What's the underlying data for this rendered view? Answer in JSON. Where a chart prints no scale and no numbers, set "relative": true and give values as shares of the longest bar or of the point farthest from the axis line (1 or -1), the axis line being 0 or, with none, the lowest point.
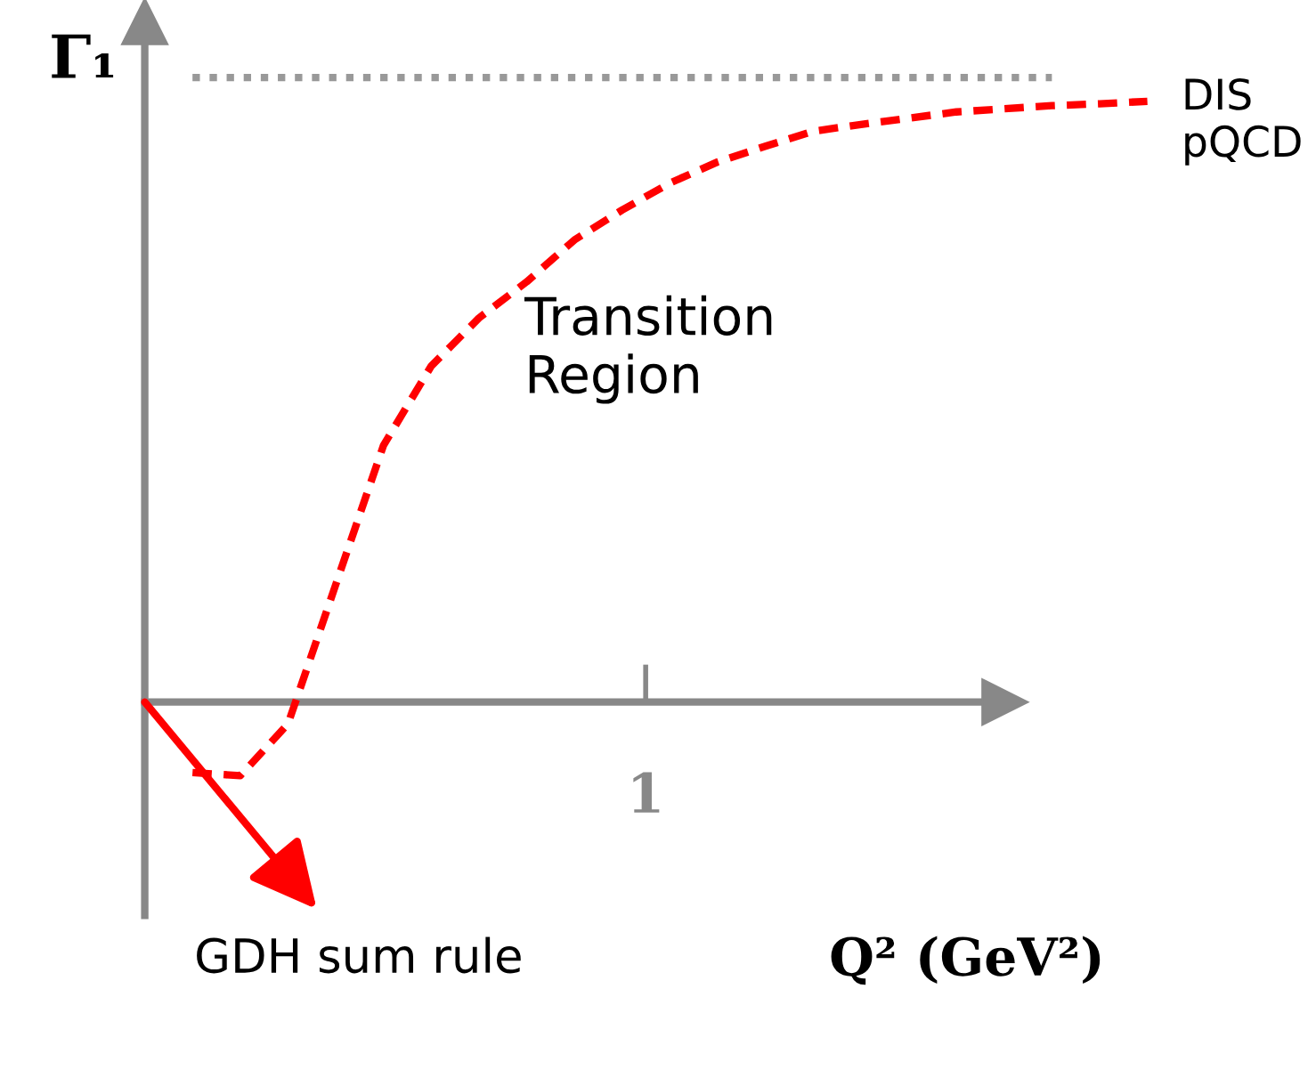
{
  "chart_data": {
    "type": "line",
    "relative": true,
    "xlabel": "Q² (GeV²)",
    "ylabel": "Γ₁",
    "categories": [
      null,
      null,
      null,
      null,
      null,
      null,
      null,
      null,
      null,
      null,
      null,
      null,
      null,
      null,
      null,
      null,
      null,
      null,
      null,
      null,
      null
    ],
    "series": [
      {
        "color": "#999999",
        "line_style": "dotted",
        "values": [
          1,
          1,
          1,
          1,
          1,
          1,
          1,
          1,
          1,
          1,
          1,
          1,
          1,
          1,
          1,
          1,
          1,
          1,
          1,
          null,
          null
        ]
      },
      {
        "color": "#ff0000",
        "line_style": "dashed",
        "values": [
          -0.113,
          -0.118,
          -0.035,
          0.188,
          0.411,
          0.538,
          0.615,
          0.673,
          0.74,
          0.788,
          0.831,
          0.865,
          0.89,
          0.914,
          0.925,
          0.935,
          0.945,
          0.95,
          0.955,
          0.958,
          0.962
        ]
      }
    ],
    "annotations": [
      "DIS\npQCD",
      "Transition\nRegion",
      "GDH sum rule",
      "1"
    ],
    "legend": false,
    "marker": "none"
  }
}
